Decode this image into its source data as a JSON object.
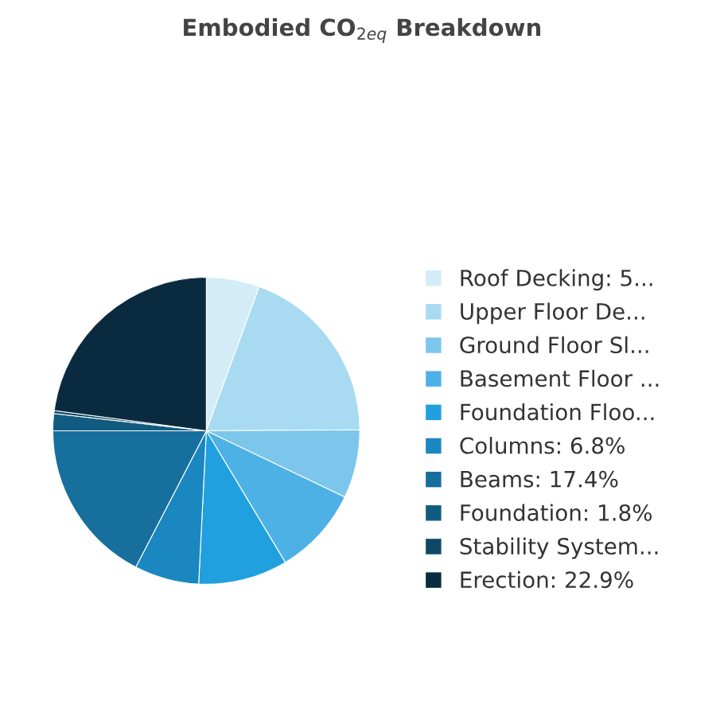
{
  "chart_data": {
    "type": "pie",
    "title": "Embodied CO$_{2eq}$ Breakdown",
    "categories": [
      "Roof Decking: 5...",
      "Upper Floor De...",
      "Ground Floor Sl...",
      "Basement Floor ...",
      "Foundation Floo...",
      "Columns: 6.8%",
      "Beams: 17.4%",
      "Foundation: 1.8%",
      "Stability System...",
      "Erection: 22.9%"
    ],
    "values": [
      5.6,
      19.3,
      7.2,
      9.3,
      9.4,
      6.8,
      17.4,
      1.8,
      0.3,
      22.9
    ],
    "colors": [
      "#d4ecf8",
      "#a8dbf2",
      "#7cc6ec",
      "#4db1e6",
      "#20a0de",
      "#1a87c0",
      "#166f9c",
      "#125b80",
      "#0f4766",
      "#0a2b3f"
    ],
    "legend": "right"
  }
}
